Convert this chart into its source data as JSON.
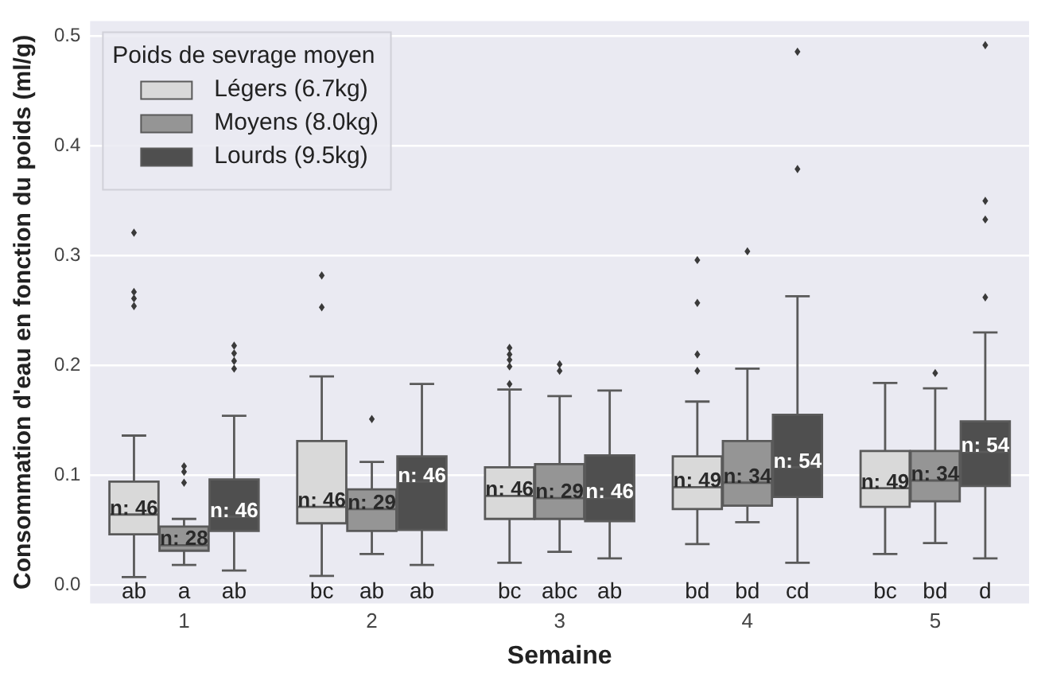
{
  "chart_data": {
    "type": "box",
    "categories": [
      "1",
      "2",
      "3",
      "4",
      "5"
    ],
    "xlabel": "Semaine",
    "ylabel": "Consommation d'eau en fonction du poids (ml/g)",
    "legend_title": "Poids de sevrage moyen",
    "legend": "top left",
    "grid": "y",
    "marker": "diamond",
    "ylim": [
      -0.017,
      0.514
    ],
    "yticks": [
      {
        "value": 0,
        "label": "0.0"
      },
      0.1,
      0.2,
      0.3,
      0.4,
      0.5
    ],
    "series": [
      {
        "name": "Légers (6.7kg)",
        "color": "#d9d9d9",
        "boxes": [
          {
            "low": 0.007,
            "q1": 0.046,
            "median": 0.064,
            "q3": 0.094,
            "high": 0.136,
            "outliers": [
              0.254,
              0.261,
              0.267,
              0.321
            ]
          },
          {
            "low": 0.008,
            "q1": 0.056,
            "median": 0.071,
            "q3": 0.131,
            "high": 0.19,
            "outliers": [
              0.253,
              0.282
            ]
          },
          {
            "low": 0.02,
            "q1": 0.06,
            "median": 0.081,
            "q3": 0.107,
            "high": 0.178,
            "outliers": [
              0.183,
              0.199,
              0.205,
              0.21,
              0.216
            ]
          },
          {
            "low": 0.037,
            "q1": 0.069,
            "median": 0.089,
            "q3": 0.117,
            "high": 0.167,
            "outliers": [
              0.195,
              0.21,
              0.257,
              0.296
            ]
          },
          {
            "low": 0.028,
            "q1": 0.071,
            "median": 0.088,
            "q3": 0.122,
            "high": 0.184
          }
        ]
      },
      {
        "name": "Moyens (8.0kg)",
        "color": "#959595",
        "boxes": [
          {
            "low": 0.018,
            "q1": 0.031,
            "median": 0.036,
            "q3": 0.053,
            "high": 0.06,
            "outliers": [
              0.093,
              0.103,
              0.108
            ]
          },
          {
            "low": 0.028,
            "q1": 0.049,
            "median": 0.069,
            "q3": 0.087,
            "high": 0.112,
            "outliers": [
              0.151
            ]
          },
          {
            "low": 0.03,
            "q1": 0.06,
            "median": 0.079,
            "q3": 0.11,
            "high": 0.172,
            "outliers": [
              0.195,
              0.201
            ]
          },
          {
            "low": 0.057,
            "q1": 0.072,
            "median": 0.093,
            "q3": 0.131,
            "high": 0.197,
            "outliers": [
              0.304
            ]
          },
          {
            "low": 0.038,
            "q1": 0.076,
            "median": 0.095,
            "q3": 0.122,
            "high": 0.179,
            "outliers": [
              0.193
            ]
          }
        ]
      },
      {
        "name": "Lourds (9.5kg)",
        "color": "#4f4f4f",
        "boxes": [
          {
            "low": 0.013,
            "q1": 0.049,
            "median": 0.062,
            "q3": 0.096,
            "high": 0.154,
            "outliers": [
              0.197,
              0.204,
              0.211,
              0.218
            ]
          },
          {
            "low": 0.018,
            "q1": 0.05,
            "median": 0.094,
            "q3": 0.117,
            "high": 0.183
          },
          {
            "low": 0.024,
            "q1": 0.058,
            "median": 0.079,
            "q3": 0.118,
            "high": 0.177
          },
          {
            "low": 0.02,
            "q1": 0.08,
            "median": 0.107,
            "q3": 0.155,
            "high": 0.263,
            "outliers": [
              0.379,
              0.486
            ]
          },
          {
            "low": 0.024,
            "q1": 0.09,
            "median": 0.121,
            "q3": 0.149,
            "high": 0.23,
            "outliers": [
              0.262,
              0.333,
              0.35,
              0.492
            ]
          }
        ]
      }
    ],
    "annotations": [
      "n: 46",
      "n: 28",
      "n: 46",
      "n: 46",
      "n: 29",
      "n: 46",
      "n: 46",
      "n: 29",
      "n: 46",
      "n: 49",
      "n: 34",
      "n: 54",
      "n: 49",
      "n: 34",
      "n: 54",
      "ab",
      "a",
      "ab",
      "bc",
      "ab",
      "ab",
      "bc",
      "abc",
      "ab",
      "bd",
      "bd",
      "cd",
      "bc",
      "bd",
      "d"
    ]
  }
}
